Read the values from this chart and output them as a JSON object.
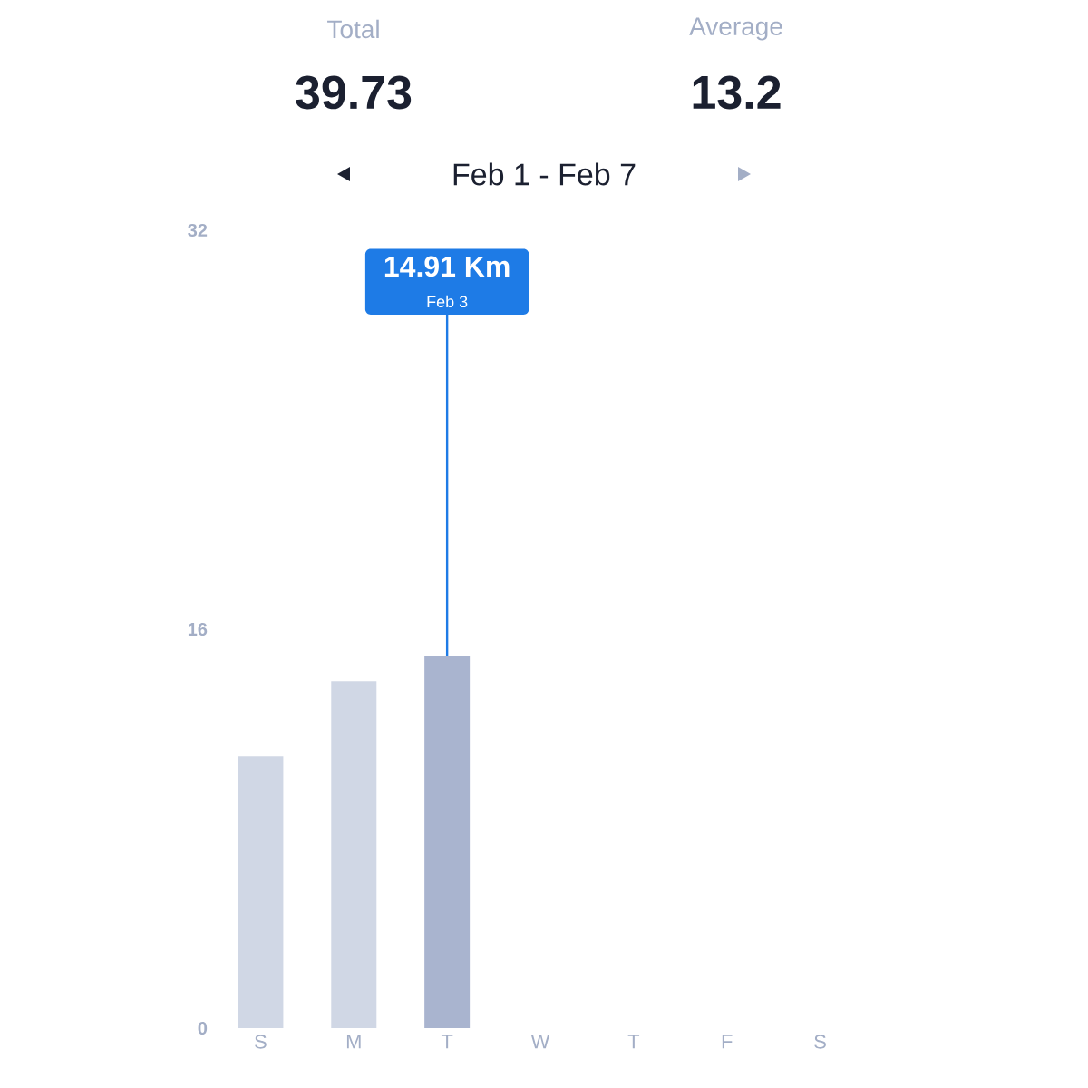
{
  "chart_data": {
    "type": "bar",
    "title": "Feb 1 - Feb 7",
    "annotations": [
      "Total",
      "39.73",
      "Average",
      "13.2",
      "Feb 3"
    ],
    "categories": [
      "S",
      "M",
      "T",
      "W",
      "T",
      "F",
      "S"
    ],
    "values": [
      10.9,
      13.92,
      14.91,
      null,
      null,
      null,
      null
    ],
    "value_labels": [
      null,
      null,
      "14.91 Km",
      null,
      null,
      null,
      null
    ],
    "colors": [
      "#d0d7e5",
      "#d0d7e5",
      "#a9b4cf",
      null,
      null,
      null,
      null
    ],
    "ylim": [
      0,
      32
    ],
    "yticks": [
      0,
      16,
      32
    ]
  }
}
